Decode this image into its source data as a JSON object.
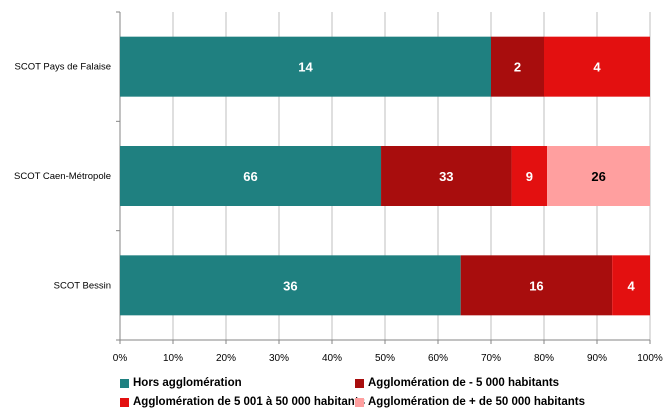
{
  "chart_data": {
    "type": "bar",
    "orientation": "horizontal",
    "stacked": "percent",
    "categories": [
      "SCOT Pays de Falaise",
      "SCOT Caen-Métropole",
      "SCOT Bessin"
    ],
    "series": [
      {
        "name": "Hors agglomération",
        "color": "#1f8080",
        "label_color": "#ffffff",
        "values": [
          14,
          66,
          36
        ]
      },
      {
        "name": "Agglomération de - 5 000 habitants",
        "color": "#a80d0d",
        "label_color": "#ffffff",
        "values": [
          2,
          33,
          16
        ]
      },
      {
        "name": "Agglomération de 5 001 à 50 000 habitants",
        "color": "#e31010",
        "label_color": "#ffffff",
        "values": [
          4,
          9,
          4
        ]
      },
      {
        "name": "Agglomération de + de 50 000 habitants",
        "color": "#ff9f9f",
        "label_color": "#000000",
        "values": [
          0,
          26,
          0
        ]
      }
    ],
    "x_ticks": [
      "0%",
      "10%",
      "20%",
      "30%",
      "40%",
      "50%",
      "60%",
      "70%",
      "80%",
      "90%",
      "100%"
    ],
    "xlim": [
      0,
      100
    ],
    "grid": true,
    "legend_position": "bottom"
  }
}
